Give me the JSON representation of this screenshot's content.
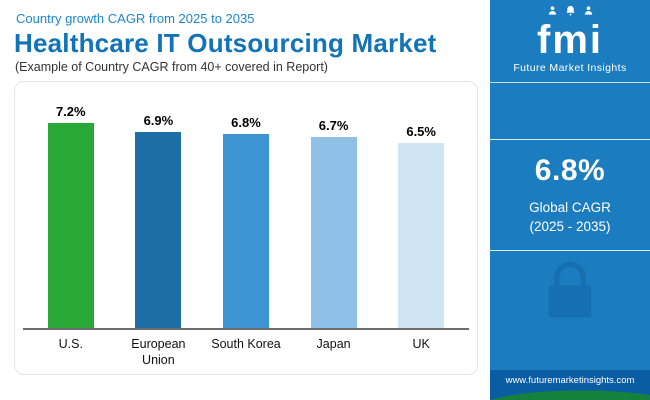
{
  "header": {
    "eyebrow": "Country growth CAGR from 2025 to 2035",
    "title": "Healthcare IT Outsourcing Market",
    "subtitle": "(Example of Country CAGR from 40+ covered in Report)"
  },
  "chart_data": {
    "type": "bar",
    "title": "Country growth CAGR from 2025 to 2035",
    "categories": [
      "U.S.",
      "European Union",
      "South Korea",
      "Japan",
      "UK"
    ],
    "values": [
      7.2,
      6.9,
      6.8,
      6.7,
      6.5
    ],
    "value_labels": [
      "7.2%",
      "6.9%",
      "6.8%",
      "6.7%",
      "6.5%"
    ],
    "bar_colors": [
      "#29a838",
      "#1e6ea6",
      "#3c95d2",
      "#8fc1e6",
      "#cfe5f4"
    ],
    "xlabel": "",
    "ylabel": "",
    "ylim": [
      0,
      7.2
    ],
    "grid": false,
    "legend": false
  },
  "sidebar": {
    "logo_text": "fmi",
    "brand": "Future Market Insights",
    "stat_value": "6.8%",
    "stat_label": "Global CAGR",
    "stat_period": "(2025 - 2035)",
    "website": "www.futuremarketinsights.com",
    "panel_color": "#1b7cbf",
    "footer_color": "#0a5ca3",
    "accent_green": "#16813c"
  }
}
